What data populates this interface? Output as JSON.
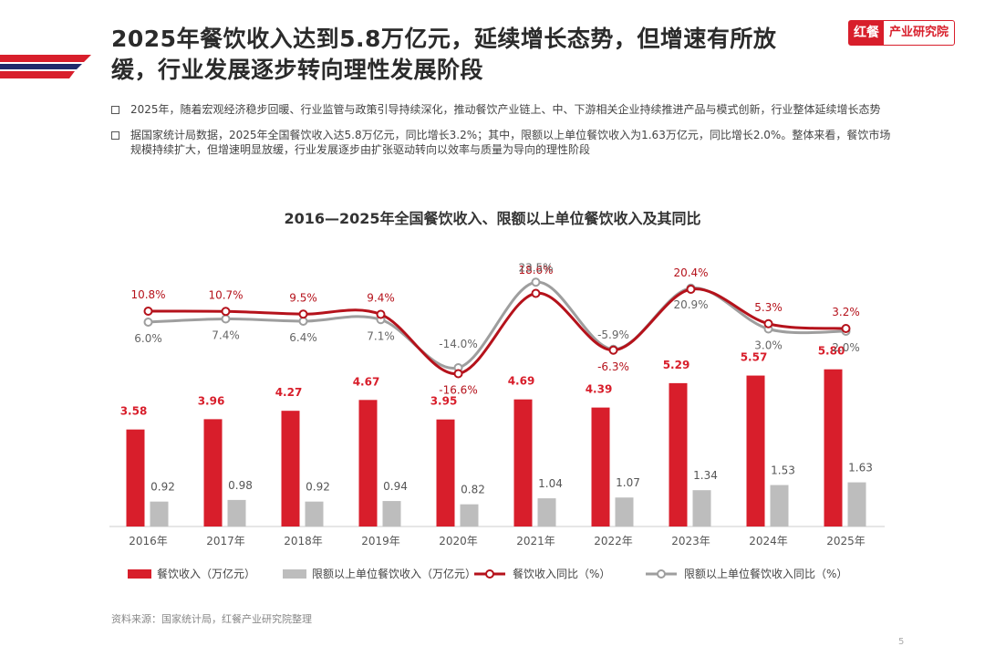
{
  "header": {
    "title_line1": "2025年餐饮收入达到5.8万亿元，延续增长态势，但增速有所放",
    "title_line2": "缓，行业发展逐步转向理性发展阶段",
    "logo_mark": "红餐",
    "logo_text": "产业研究院"
  },
  "bullets": [
    "2025年，随着宏观经济稳步回暖、行业监管与政策引导持续深化，推动餐饮产业链上、中、下游相关企业持续推进产品与模式创新，行业整体延续增长态势",
    "据国家统计局数据，2025年全国餐饮收入达5.8万亿元，同比增长3.2%；其中，限额以上单位餐饮收入为1.63万亿元，同比增长2.0%。整体来看，餐饮市场规模持续扩大，但增速明显放缓，行业发展逐步由扩张驱动转向以效率与质量为导向的理性阶段"
  ],
  "chart_data": {
    "type": "bar",
    "title": "2016—2025年全国餐饮收入、限额以上单位餐饮收入及其同比",
    "categories": [
      "2016年",
      "2017年",
      "2018年",
      "2019年",
      "2020年",
      "2021年",
      "2022年",
      "2023年",
      "2024年",
      "2025年"
    ],
    "series": [
      {
        "name": "餐饮收入（万亿元）",
        "type": "bar",
        "color": "#d81e2b",
        "values": [
          3.58,
          3.96,
          4.27,
          4.67,
          3.95,
          4.69,
          4.39,
          5.29,
          5.57,
          5.8
        ],
        "labels": [
          "3.58",
          "3.96",
          "4.27",
          "4.67",
          "3.95",
          "4.69",
          "4.39",
          "5.29",
          "5.57",
          "5.80"
        ]
      },
      {
        "name": "限额以上单位餐饮收入（万亿元）",
        "type": "bar",
        "color": "#bdbdbd",
        "values": [
          0.92,
          0.98,
          0.92,
          0.94,
          0.82,
          1.04,
          1.07,
          1.34,
          1.53,
          1.63
        ],
        "labels": [
          "0.92",
          "0.98",
          "0.92",
          "0.94",
          "0.82",
          "1.04",
          "1.07",
          "1.34",
          "1.53",
          "1.63"
        ]
      },
      {
        "name": "餐饮收入同比（%）",
        "type": "line",
        "color": "#b5121b",
        "values": [
          10.8,
          10.7,
          9.5,
          9.4,
          -16.6,
          18.6,
          -6.3,
          20.4,
          5.3,
          3.2
        ],
        "labels": [
          "10.8%",
          "10.7%",
          "9.5%",
          "9.4%",
          "-16.6%",
          "18.6%",
          "-6.3%",
          "20.4%",
          "5.3%",
          "3.2%"
        ]
      },
      {
        "name": "限额以上单位餐饮收入同比（%）",
        "type": "line",
        "color": "#9e9e9e",
        "values": [
          6.0,
          7.4,
          6.4,
          7.1,
          -14.0,
          23.5,
          -5.9,
          20.9,
          3.0,
          2.0
        ],
        "labels": [
          "6.0%",
          "7.4%",
          "6.4%",
          "7.1%",
          "-14.0%",
          "23.5%",
          "-5.9%",
          "20.9%",
          "3.0%",
          "2.0%"
        ]
      }
    ],
    "legend_position": "bottom",
    "grid": false
  },
  "footer": {
    "source": "资料来源：国家统计局，红餐产业研究院整理",
    "page_number": "5"
  }
}
